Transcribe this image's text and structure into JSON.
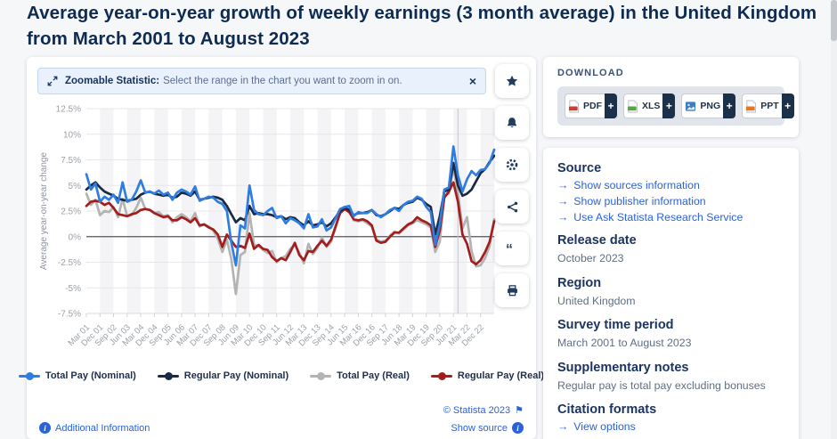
{
  "page": {
    "title": "Average year-on-year growth of weekly earnings (3 month average) in the United Kingdom from March 2001 to August 2023",
    "title_color": "#0e2b52"
  },
  "icons": {
    "close": "×",
    "arrow": "→",
    "plus": "+",
    "flag": "⚑",
    "info": "i",
    "quote": "“"
  },
  "banner": {
    "bold_text": "Zoomable Statistic:",
    "text": "Select the range in the chart you want to zoom in on."
  },
  "toolbar": {
    "buttons": [
      {
        "name": "favorite",
        "icon": "star-icon"
      },
      {
        "name": "notifications",
        "icon": "bell-icon"
      },
      {
        "name": "settings",
        "icon": "gear-icon"
      },
      {
        "name": "share",
        "icon": "share-icon"
      },
      {
        "name": "cite",
        "icon": "quote-icon"
      },
      {
        "name": "print",
        "icon": "printer-icon"
      }
    ]
  },
  "chart_data": {
    "type": "line",
    "title": "Average year-on-year growth of weekly earnings (3 month average) in the United Kingdom from March 2001 to August 2023",
    "ylabel": "Average year-on-year change",
    "ylim": [
      -7.5,
      12.5
    ],
    "y_ticks": [
      "12.5%",
      "10%",
      "7.5%",
      "5%",
      "2.5%",
      "0%",
      "-2.5%",
      "-5%",
      "-7.5%"
    ],
    "x_ticks": [
      "Mar 01",
      "Dec 01",
      "Sep 02",
      "Jun 03",
      "Mar 04",
      "Dec 04",
      "Sep 05",
      "Jun 06",
      "Mar 07",
      "Dec 07",
      "Sep 08",
      "Jun 09",
      "Mar 10",
      "Dec 10",
      "Sep 11",
      "Jun 12",
      "Mar 13",
      "Dec 13",
      "Sep 14",
      "Jun 15",
      "Mar 16",
      "Dec 16",
      "Sep 17",
      "Jun 18",
      "Mar 19",
      "Dec 19",
      "Sep 20",
      "Jun 21",
      "Mar 22",
      "Dec 22"
    ],
    "points_per_tick": 3,
    "x_range": "March 2001 to August 2023, quarterly samples",
    "grid": "horizontal",
    "zero_line": true,
    "legend_position": "bottom",
    "band_color": "#f4f4f6",
    "crosshair_index": 82,
    "series": [
      {
        "name": "Total Pay (Nominal)",
        "color": "#2f7de1",
        "values": [
          6.1,
          4.6,
          5.2,
          3.4,
          3.9,
          3.6,
          4.1,
          3.3,
          5.3,
          3.4,
          3.6,
          4.4,
          5.5,
          4.3,
          4.4,
          4.2,
          4.5,
          4.1,
          4.3,
          3.6,
          4.3,
          4.6,
          4.4,
          4.1,
          4.9,
          3.5,
          3.7,
          3.9,
          3.8,
          3.4,
          3.2,
          2.5,
          -0.6,
          -2.8,
          1.1,
          0.8,
          5.0,
          2.6,
          2.2,
          2.1,
          2.5,
          2.8,
          1.8,
          2.0,
          1.3,
          1.8,
          1.6,
          1.3,
          0.8,
          2.2,
          0.9,
          1.0,
          1.7,
          0.6,
          0.9,
          1.8,
          2.7,
          2.9,
          3.0,
          2.0,
          2.4,
          2.3,
          2.3,
          2.6,
          2.2,
          1.9,
          2.2,
          2.6,
          2.8,
          2.5,
          3.1,
          3.4,
          3.5,
          3.9,
          3.7,
          2.9,
          2.4,
          -0.8,
          1.2,
          4.6,
          4.8,
          8.8,
          6.0,
          4.4,
          5.6,
          6.4,
          6.0,
          6.5,
          6.6,
          7.2,
          8.5
        ]
      },
      {
        "name": "Regular Pay (Nominal)",
        "color": "#192a44",
        "values": [
          4.6,
          5.0,
          5.3,
          4.8,
          4.4,
          4.2,
          4.0,
          3.7,
          3.6,
          3.5,
          3.6,
          3.7,
          4.1,
          4.3,
          4.4,
          4.2,
          4.1,
          4.0,
          4.1,
          3.8,
          3.9,
          4.3,
          4.2,
          4.0,
          4.4,
          3.6,
          3.7,
          3.8,
          3.9,
          3.8,
          3.6,
          3.0,
          2.2,
          1.4,
          1.8,
          1.6,
          3.0,
          2.2,
          2.3,
          2.2,
          2.2,
          2.1,
          1.9,
          2.0,
          1.7,
          1.9,
          1.8,
          1.4,
          1.1,
          1.5,
          1.1,
          1.2,
          1.4,
          1.0,
          1.3,
          1.9,
          2.5,
          2.8,
          2.6,
          2.1,
          2.3,
          2.3,
          2.4,
          2.6,
          2.1,
          2.0,
          2.2,
          2.5,
          2.8,
          2.7,
          3.1,
          3.3,
          3.4,
          3.8,
          3.6,
          3.2,
          2.9,
          0.2,
          2.0,
          4.4,
          4.6,
          7.2,
          5.0,
          4.0,
          4.2,
          4.6,
          5.4,
          6.2,
          6.6,
          7.3,
          7.9
        ]
      },
      {
        "name": "Total Pay (Real)",
        "color": "#b3b3b3",
        "values": [
          4.2,
          3.1,
          3.6,
          2.1,
          2.5,
          2.4,
          2.9,
          1.9,
          3.7,
          2.0,
          2.1,
          2.8,
          3.8,
          2.7,
          2.6,
          2.3,
          2.4,
          2.0,
          2.1,
          1.4,
          1.9,
          2.2,
          1.9,
          1.5,
          2.3,
          1.0,
          1.2,
          1.0,
          0.6,
          -0.2,
          -1.5,
          -0.3,
          -2.2,
          -5.6,
          -1.8,
          -1.5,
          2.3,
          -0.8,
          -0.9,
          -1.3,
          -1.6,
          -1.4,
          -2.5,
          -2.1,
          -1.9,
          -1.2,
          -0.8,
          -1.6,
          -2.6,
          -0.7,
          -1.7,
          -1.1,
          -0.1,
          -1.0,
          -0.5,
          0.9,
          2.5,
          2.9,
          2.7,
          1.6,
          1.5,
          1.6,
          1.3,
          1.0,
          -0.3,
          -0.5,
          -0.4,
          0.1,
          0.5,
          0.3,
          0.7,
          1.1,
          1.3,
          1.6,
          1.4,
          1.2,
          0.9,
          -1.5,
          -0.5,
          4.0,
          4.2,
          6.7,
          4.3,
          0.8,
          1.9,
          -1.4,
          -2.9,
          -2.8,
          -2.1,
          -0.9,
          1.7
        ]
      },
      {
        "name": "Regular Pay (Real)",
        "color": "#a31d1d",
        "values": [
          3.0,
          3.4,
          3.5,
          3.4,
          3.1,
          3.3,
          2.8,
          2.2,
          2.1,
          2.0,
          2.2,
          2.3,
          2.6,
          2.7,
          2.6,
          2.3,
          2.1,
          1.9,
          2.0,
          1.6,
          1.6,
          1.9,
          1.7,
          1.4,
          1.8,
          1.1,
          1.2,
          0.9,
          0.7,
          0.2,
          -1.0,
          0.2,
          -0.4,
          -1.0,
          -0.9,
          -1.1,
          0.3,
          -1.2,
          -0.8,
          -1.2,
          -1.3,
          -2.0,
          -2.4,
          -2.1,
          -2.3,
          -1.5,
          -0.6,
          -1.8,
          -2.3,
          -1.4,
          -1.5,
          -0.9,
          -0.4,
          -0.9,
          -0.3,
          1.0,
          2.3,
          2.7,
          2.4,
          1.7,
          1.6,
          1.7,
          1.5,
          1.1,
          -0.4,
          -0.6,
          -0.5,
          0.0,
          0.4,
          0.4,
          0.8,
          1.2,
          1.4,
          1.9,
          1.6,
          1.4,
          1.1,
          -1.0,
          0.6,
          3.8,
          4.4,
          5.3,
          3.4,
          0.2,
          -0.7,
          -2.4,
          -2.7,
          -2.3,
          -1.5,
          -0.5,
          1.5
        ]
      }
    ]
  },
  "download": {
    "label": "DOWNLOAD",
    "buttons": [
      {
        "label": "PDF",
        "type": "pdf",
        "icon_color": "#d23c32"
      },
      {
        "label": "XLS",
        "type": "xls",
        "icon_color": "#5aa63e"
      },
      {
        "label": "PNG",
        "type": "png",
        "icon_color": "#3f7ec6"
      },
      {
        "label": "PPT",
        "type": "ppt",
        "icon_color": "#e8771f"
      }
    ]
  },
  "sidebar": {
    "source": {
      "title": "Source",
      "links": [
        "Show sources information",
        "Show publisher information",
        "Use Ask Statista Research Service"
      ]
    },
    "meta_sections": [
      {
        "title": "Release date",
        "value": "October 2023"
      },
      {
        "title": "Region",
        "value": "United Kingdom"
      },
      {
        "title": "Survey time period",
        "value": "March 2001 to August 2023"
      },
      {
        "title": "Supplementary notes",
        "value": "Regular pay is total pay excluding bonuses"
      }
    ],
    "citation": {
      "title": "Citation formats",
      "link": "View options"
    }
  },
  "footer": {
    "additional_information": "Additional Information",
    "copyright": "© Statista 2023",
    "show_source": "Show source"
  },
  "colors": {
    "link_blue": "#2b62d9",
    "header_navy": "#1b3560",
    "body_slate": "#5f6e85"
  }
}
